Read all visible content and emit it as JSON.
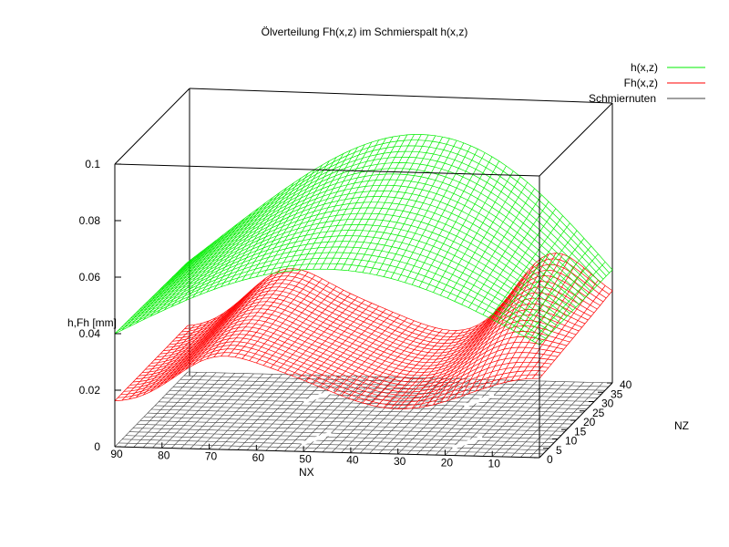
{
  "colors": {
    "h_surface": "#00ee00",
    "fh_surface": "#ff0000",
    "grooves": "#404040",
    "groove_marks": "#ffffff"
  },
  "chart_data": {
    "type": "surface3d",
    "title": "Ölverteilung Fh(x,z) im Schmierspalt h(x,z)",
    "xlabel": "NX",
    "ylabel": "NZ",
    "zlabel": "h,Fh [mm]",
    "xlim": [
      0,
      90
    ],
    "ylim": [
      0,
      40
    ],
    "zlim": [
      0,
      0.1
    ],
    "x_ticks": [
      "90",
      "80",
      "70",
      "60",
      "50",
      "40",
      "30",
      "20",
      "10"
    ],
    "y_ticks": [
      "0",
      "5",
      "10",
      "15",
      "20",
      "25",
      "30",
      "35",
      "40"
    ],
    "z_ticks": [
      "0",
      "0.02",
      "0.04",
      "0.06",
      "0.08",
      "0.1"
    ],
    "legend_position": "top-right",
    "grid": false,
    "series": [
      {
        "name": "h(x,z)",
        "color": "#00ee00",
        "description_values": {
          "min": 0.04,
          "max": 0.085
        }
      },
      {
        "name": "Fh(x,z)",
        "color": "#ff0000",
        "description_values": {
          "min": 0.015,
          "max": 0.05
        }
      },
      {
        "name": "Schmiernuten",
        "color": "#404040",
        "description_values": {
          "min": 0,
          "max": 0
        }
      }
    ]
  }
}
